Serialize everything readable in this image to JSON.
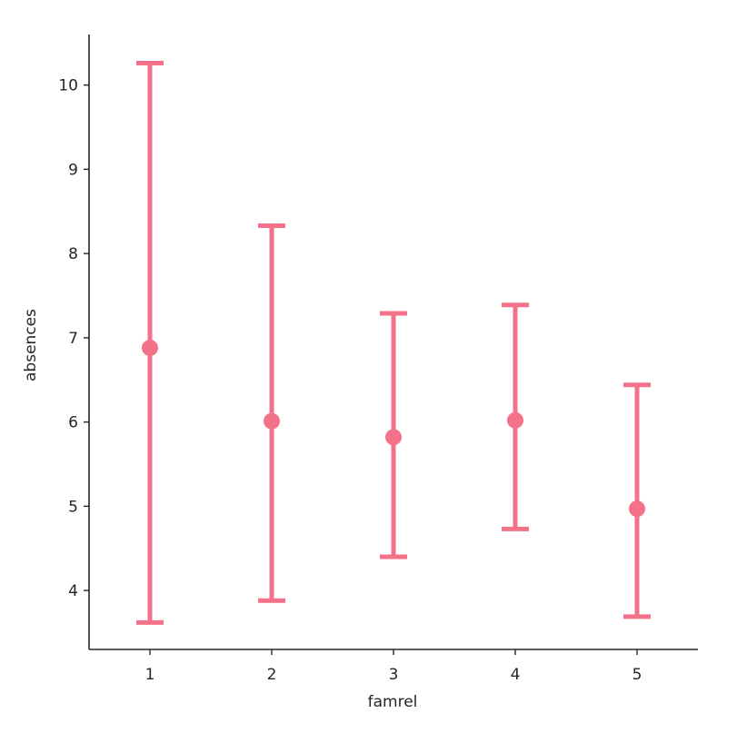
{
  "chart_data": {
    "type": "pointplot",
    "title": "",
    "xlabel": "famrel",
    "ylabel": "absences",
    "categories": [
      "1",
      "2",
      "3",
      "4",
      "5"
    ],
    "series": [
      {
        "values": [
          6.88,
          6.01,
          5.82,
          6.02,
          4.97
        ],
        "ci_low": [
          3.62,
          3.88,
          4.4,
          4.73,
          3.69
        ],
        "ci_high": [
          10.26,
          8.33,
          7.29,
          7.39,
          6.44
        ],
        "color": "#f47289"
      }
    ],
    "yticks": [
      "4",
      "5",
      "6",
      "7",
      "8",
      "9",
      "10"
    ],
    "ylim": [
      3.3,
      10.6
    ],
    "grid": false,
    "legend": "none"
  }
}
